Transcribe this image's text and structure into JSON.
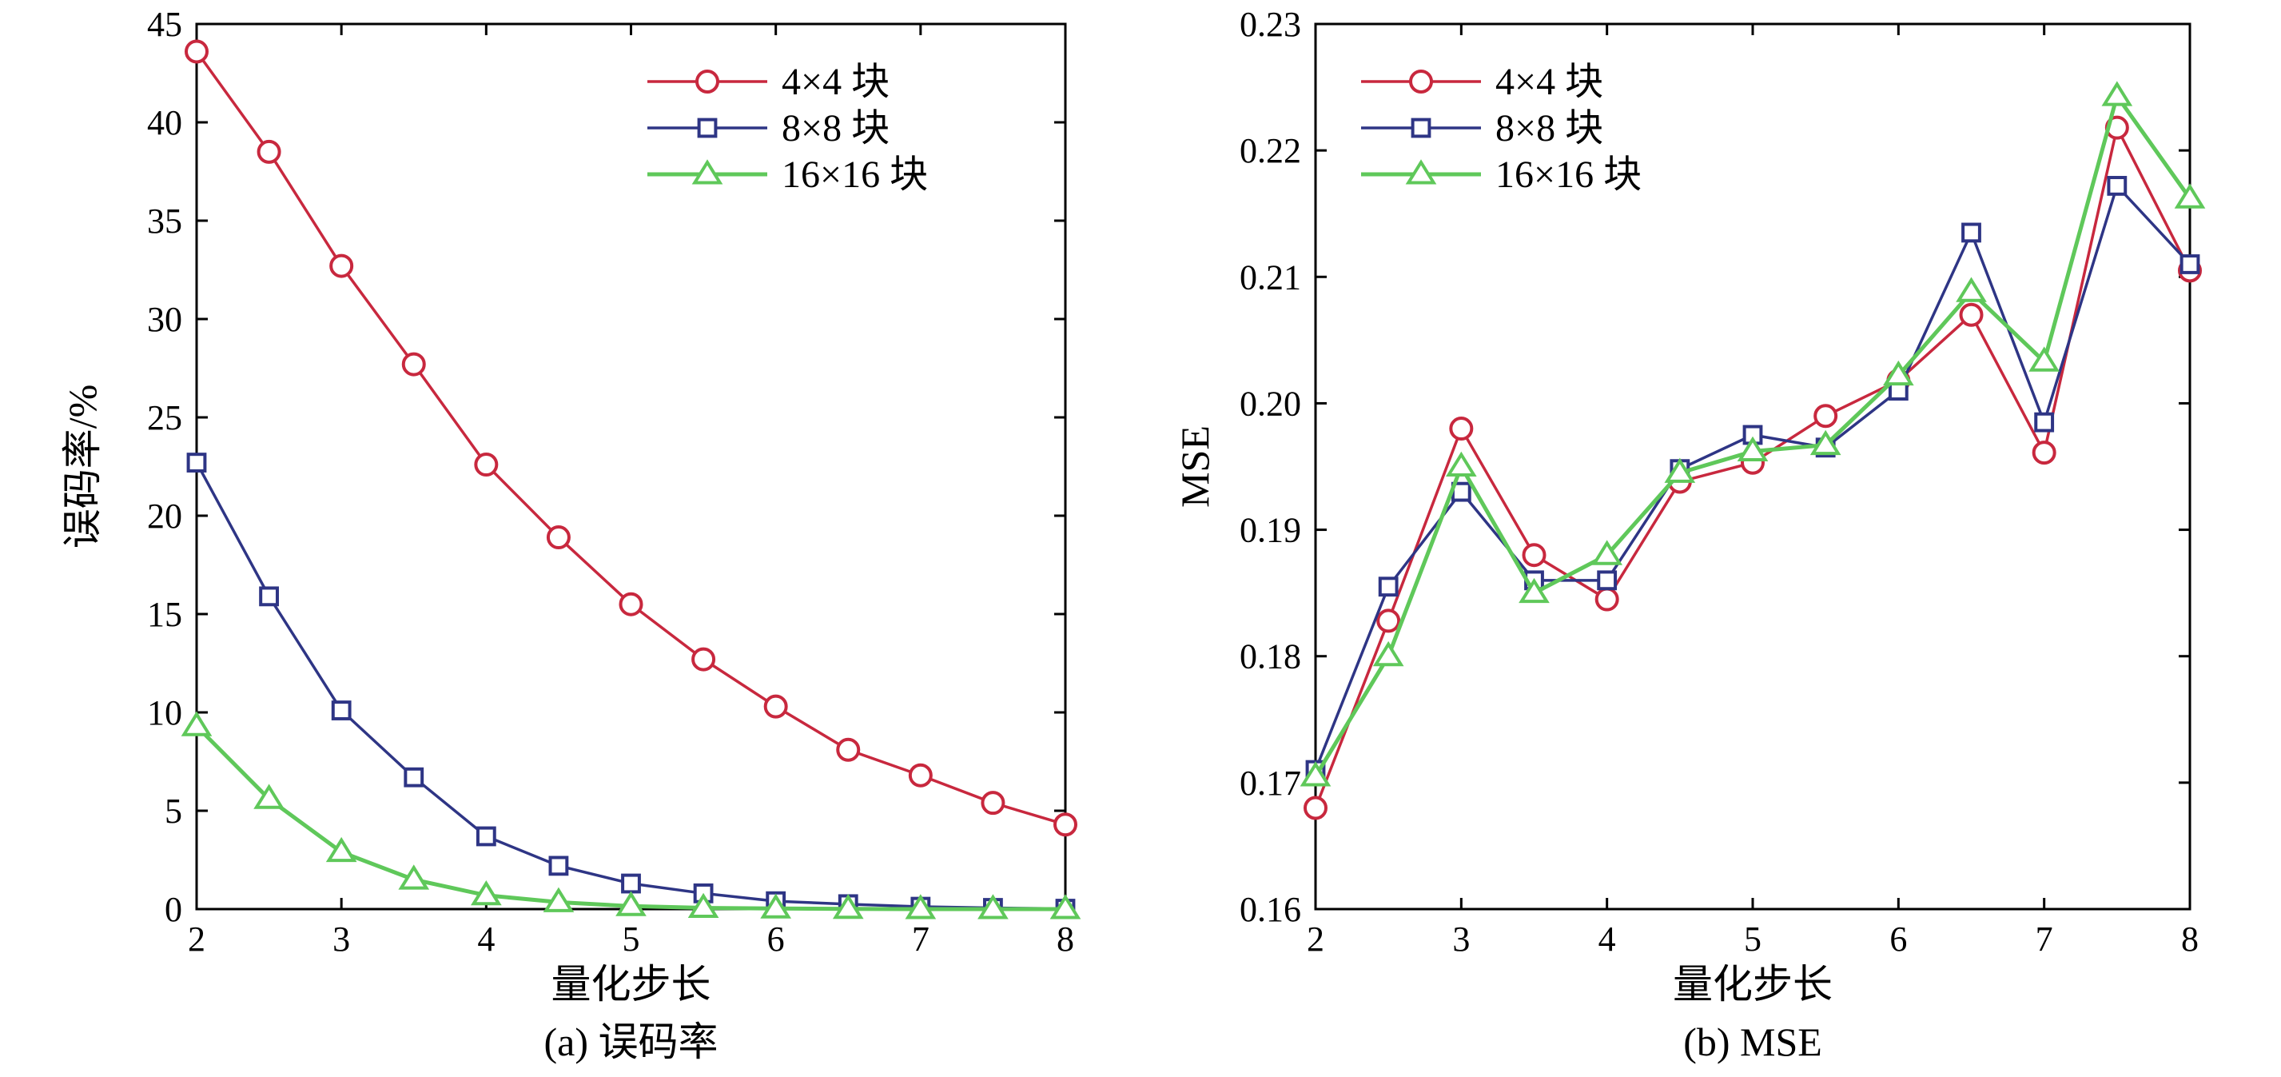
{
  "chart_data": [
    {
      "type": "line",
      "xlabel": "量化步长",
      "ylabel": "误码率/%",
      "caption": "(a) 误码率",
      "xlim": [
        2,
        8
      ],
      "ylim": [
        0,
        45
      ],
      "xticks": [
        2,
        3,
        4,
        5,
        6,
        7,
        8
      ],
      "yticks": [
        0,
        5,
        10,
        15,
        20,
        25,
        30,
        35,
        40,
        45
      ],
      "legend_position": "top-right",
      "grid": false,
      "x": [
        2,
        2.5,
        3,
        3.5,
        4,
        4.5,
        5,
        5.5,
        6,
        6.5,
        7,
        7.5,
        8
      ],
      "series": [
        {
          "name": "4×4 块",
          "color": "#c8283e",
          "marker": "circle",
          "values": [
            43.6,
            38.5,
            32.7,
            27.7,
            22.6,
            18.9,
            15.5,
            12.7,
            10.3,
            8.1,
            6.8,
            5.4,
            4.3
          ]
        },
        {
          "name": "8×8 块",
          "color": "#2e3585",
          "marker": "square",
          "values": [
            22.7,
            15.9,
            10.1,
            6.7,
            3.7,
            2.2,
            1.3,
            0.8,
            0.4,
            0.25,
            0.12,
            0.06,
            0.02
          ]
        },
        {
          "name": "16×16 块",
          "color": "#5fc85a",
          "marker": "triangle",
          "values": [
            9.3,
            5.6,
            2.9,
            1.5,
            0.7,
            0.35,
            0.15,
            0.06,
            0.03,
            0.01,
            0.0,
            0.0,
            0.0
          ]
        }
      ]
    },
    {
      "type": "line",
      "xlabel": "量化步长",
      "ylabel": "MSE",
      "caption": "(b) MSE",
      "xlim": [
        2,
        8
      ],
      "ylim": [
        0.16,
        0.23
      ],
      "xticks": [
        2,
        3,
        4,
        5,
        6,
        7,
        8
      ],
      "yticks": [
        0.16,
        0.17,
        0.18,
        0.19,
        0.2,
        0.21,
        0.22,
        0.23
      ],
      "ytick_labels": [
        "0.16",
        "0.17",
        "0.18",
        "0.19",
        "0.20",
        "0.21",
        "0.22",
        "0.23"
      ],
      "legend_position": "top-left",
      "grid": false,
      "x": [
        2,
        2.5,
        3,
        3.5,
        4,
        4.5,
        5,
        5.5,
        6,
        6.5,
        7,
        7.5,
        8
      ],
      "series": [
        {
          "name": "4×4 块",
          "color": "#c8283e",
          "marker": "circle",
          "values": [
            0.168,
            0.1828,
            0.198,
            0.188,
            0.1845,
            0.1938,
            0.1953,
            0.199,
            0.2018,
            0.207,
            0.1961,
            0.2218,
            0.2105
          ]
        },
        {
          "name": "8×8 块",
          "color": "#2e3585",
          "marker": "square",
          "values": [
            0.171,
            0.1855,
            0.193,
            0.186,
            0.186,
            0.1948,
            0.1975,
            0.1965,
            0.201,
            0.2135,
            0.1985,
            0.2172,
            0.211
          ]
        },
        {
          "name": "16×16 块",
          "color": "#5fc85a",
          "marker": "triangle",
          "values": [
            0.1705,
            0.18,
            0.195,
            0.185,
            0.188,
            0.1945,
            0.1962,
            0.1967,
            0.2022,
            0.2088,
            0.2033,
            0.2243,
            0.2162
          ]
        }
      ]
    }
  ]
}
